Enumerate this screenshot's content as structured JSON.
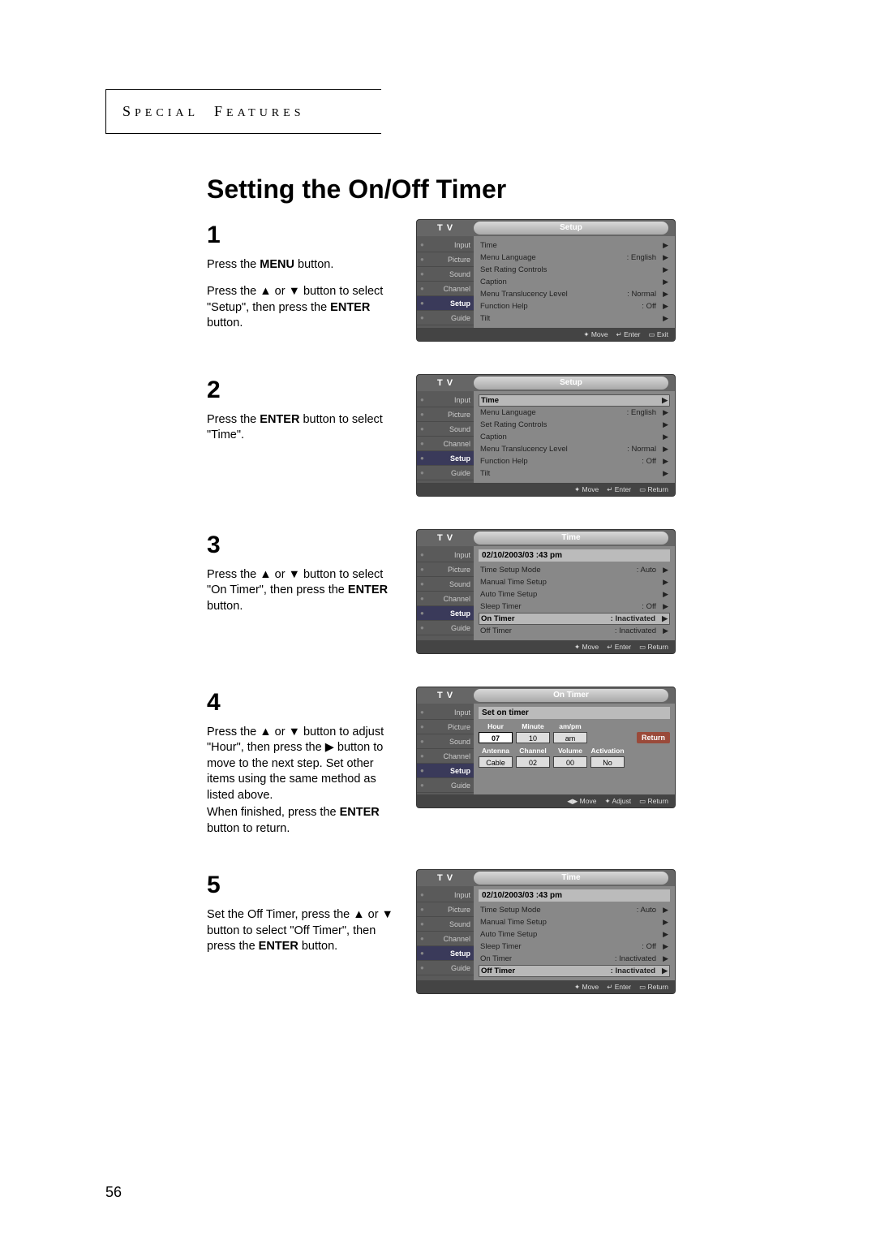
{
  "header": {
    "text": "SPECIAL FEATURES"
  },
  "title": "Setting the On/Off Timer",
  "page_number": "56",
  "sidebar": {
    "items": [
      "Input",
      "Picture",
      "Sound",
      "Channel",
      "Setup",
      "Guide"
    ],
    "active_index": 4
  },
  "setup_menu": {
    "tab": "Setup",
    "rows": [
      {
        "label": "Time",
        "value": "",
        "hl": true
      },
      {
        "label": "Menu Language",
        "value": ": English"
      },
      {
        "label": "Set Rating Controls",
        "value": ""
      },
      {
        "label": "Caption",
        "value": ""
      },
      {
        "label": "Menu Translucency Level",
        "value": ": Normal"
      },
      {
        "label": "Function Help",
        "value": ": Off"
      },
      {
        "label": "Tilt",
        "value": ""
      }
    ],
    "footer": [
      "✦ Move",
      "↵ Enter",
      "▭ Exit"
    ],
    "footer2": [
      "✦ Move",
      "↵ Enter",
      "▭ Return"
    ]
  },
  "time_menu": {
    "tab": "Time",
    "datetime": "02/10/2003/03 :43  pm",
    "rows": [
      {
        "label": "Time Setup Mode",
        "value": ": Auto"
      },
      {
        "label": "Manual Time Setup",
        "value": ""
      },
      {
        "label": "Auto Time Setup",
        "value": ""
      },
      {
        "label": "Sleep Timer",
        "value": ": Off"
      },
      {
        "label": "On Timer",
        "value": ": Inactivated"
      },
      {
        "label": "Off Timer",
        "value": ": Inactivated"
      }
    ],
    "footer": [
      "✦ Move",
      "↵ Enter",
      "▭ Return"
    ]
  },
  "ontimer_menu": {
    "tab": "On Timer",
    "title": "Set on timer",
    "row1_labels": [
      "Hour",
      "Minute",
      "am/pm"
    ],
    "row1_values": [
      "07",
      "10",
      "am"
    ],
    "row2_labels": [
      "Antenna",
      "Channel",
      "Volume",
      "Activation"
    ],
    "row2_values": [
      "Cable",
      "02",
      "00",
      "No"
    ],
    "return": "Return",
    "footer": [
      "◀▶ Move",
      "✦ Adjust",
      "▭ Return"
    ]
  },
  "steps": {
    "s1": {
      "num": "1",
      "text_parts": [
        "Press the ",
        "MENU",
        " button.",
        "",
        "Press the ▲ or ▼ button to select \"Setup\", then press the ",
        "ENTER",
        " button."
      ]
    },
    "s2": {
      "num": "2",
      "text_parts": [
        "Press the ",
        "ENTER",
        " button to select \"Time\"."
      ]
    },
    "s3": {
      "num": "3",
      "text_parts": [
        "Press the ▲ or ▼ button to select \"On Timer\", then press the ",
        "ENTER",
        " button."
      ]
    },
    "s4": {
      "num": "4",
      "text_parts": [
        "Press the ▲ or ▼ button to adjust \"Hour\", then press the ▶ button to move to the next step. Set other items using the same method as listed above.",
        "",
        "When finished, press the ",
        "ENTER",
        " button to return."
      ]
    },
    "s5": {
      "num": "5",
      "text_parts": [
        "Set the Off Timer, press the ▲ or ▼ button to select \"Off Timer\", then press the ",
        "ENTER",
        " button."
      ]
    }
  },
  "time_hl": {
    "step3_index": 4,
    "step5_index": 5
  }
}
